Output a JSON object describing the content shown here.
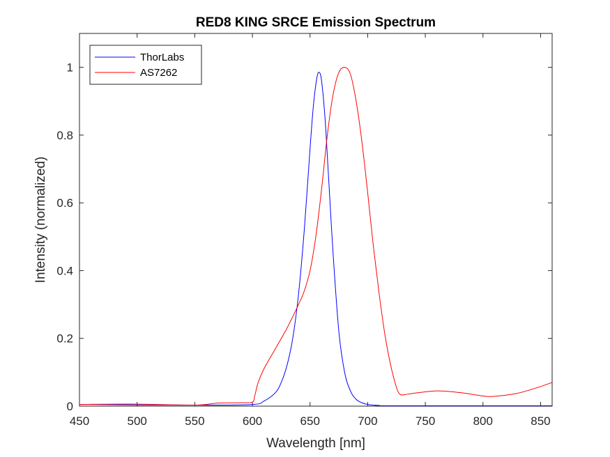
{
  "chart_data": {
    "type": "line",
    "title": "RED8 KING SRCE Emission Spectrum",
    "xlabel": "Wavelength [nm]",
    "ylabel": "Intensity (normalized)",
    "xlim": [
      450,
      860
    ],
    "ylim": [
      0,
      1.1
    ],
    "xticks": [
      450,
      500,
      550,
      600,
      650,
      700,
      750,
      800,
      850
    ],
    "yticks": [
      0,
      0.2,
      0.4,
      0.6,
      0.8,
      1
    ],
    "ytick_labels": [
      "0",
      "0.2",
      "0.4",
      "0.6",
      "0.8",
      "1"
    ],
    "grid": false,
    "legend_position": "top-left",
    "series": [
      {
        "name": "ThorLabs",
        "color": "#0000ff",
        "x": [
          450,
          550,
          600,
          610,
          620,
          625,
          630,
          635,
          640,
          645,
          650,
          653,
          656,
          658,
          660,
          663,
          666,
          670,
          675,
          680,
          685,
          690,
          695,
          700,
          710,
          720,
          860
        ],
        "y": [
          0.005,
          0.003,
          0.005,
          0.015,
          0.04,
          0.07,
          0.12,
          0.2,
          0.33,
          0.52,
          0.76,
          0.89,
          0.97,
          0.985,
          0.96,
          0.85,
          0.68,
          0.45,
          0.22,
          0.1,
          0.045,
          0.02,
          0.01,
          0.005,
          0.002,
          0.001,
          0.001
        ]
      },
      {
        "name": "AS7262",
        "color": "#ff0000",
        "x": [
          450,
          500,
          550,
          570,
          590,
          600,
          602,
          605,
          610,
          620,
          630,
          640,
          645,
          650,
          655,
          660,
          665,
          670,
          675,
          680,
          685,
          690,
          695,
          700,
          705,
          710,
          715,
          720,
          725,
          728,
          732,
          740,
          760,
          780,
          800,
          810,
          830,
          850,
          860
        ],
        "y": [
          0.005,
          0.006,
          0.003,
          0.009,
          0.01,
          0.012,
          0.03,
          0.07,
          0.11,
          0.17,
          0.23,
          0.3,
          0.34,
          0.4,
          0.5,
          0.64,
          0.8,
          0.92,
          0.985,
          1.0,
          0.98,
          0.9,
          0.78,
          0.63,
          0.47,
          0.33,
          0.21,
          0.12,
          0.055,
          0.035,
          0.034,
          0.038,
          0.045,
          0.04,
          0.03,
          0.029,
          0.038,
          0.058,
          0.07
        ]
      }
    ]
  }
}
